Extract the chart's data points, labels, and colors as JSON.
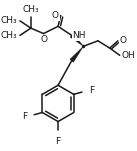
{
  "bg_color": "#ffffff",
  "line_color": "#1a1a1a",
  "line_width": 1.1,
  "font_size": 6.5,
  "figsize": [
    1.37,
    1.51
  ],
  "dpi": 100,
  "xlim": [
    0,
    137
  ],
  "ylim": [
    0,
    151
  ]
}
